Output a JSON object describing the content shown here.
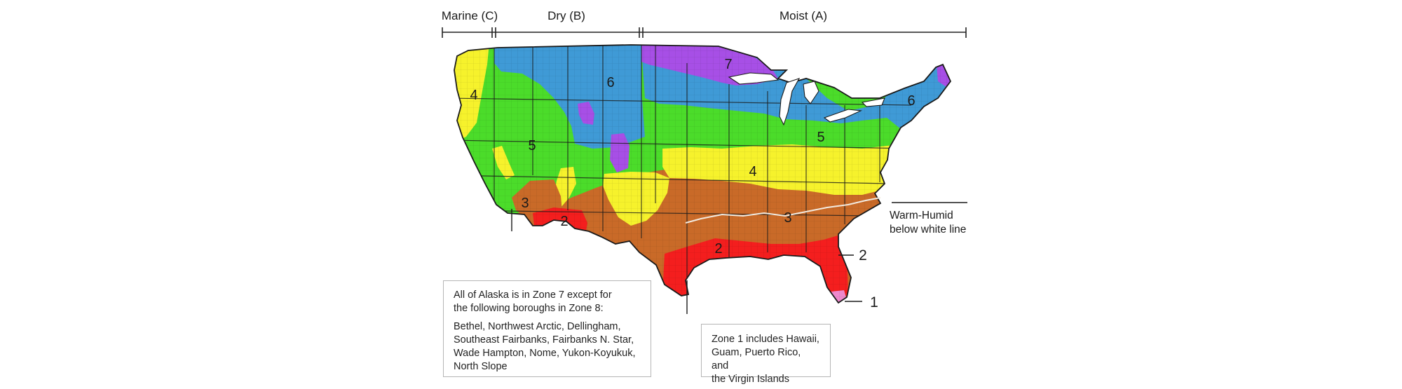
{
  "title": "",
  "header": {
    "marine": "Marine (C)",
    "dry": "Dry (B)",
    "moist": "Moist (A)"
  },
  "zones": {
    "z1": "1",
    "z2_west": "2",
    "z2_east": "2",
    "z2_florida_callout": "2",
    "z3_west": "3",
    "z3_east": "3",
    "z4_west": "4",
    "z4_east": "4",
    "z5_west": "5",
    "z5_east": "5",
    "z6_west": "6",
    "z6_east": "6",
    "z7": "7"
  },
  "colors": {
    "zone1": "#ee88cc",
    "zone2": "#f41e1e",
    "zone3": "#c96a28",
    "zone4": "#f6f22c",
    "zone5": "#4bdc2a",
    "zone6": "#3f9ad6",
    "zone7": "#a74fe6",
    "humid_line": "#f2eadf"
  },
  "annotations": {
    "warm_humid_line1": "Warm-Humid",
    "warm_humid_line2": "below white line"
  },
  "alaska_note": {
    "line1": "All of Alaska is in Zone 7 except for",
    "line2": "the following boroughs in Zone 8:",
    "line3": "Bethel, Northwest Arctic, Dellingham,",
    "line4": "Southeast Fairbanks, Fairbanks N. Star,",
    "line5": "Wade Hampton, Nome, Yukon-Koyukuk,",
    "line6": "North Slope"
  },
  "islands_note": {
    "line1": "Zone 1 includes Hawaii,",
    "line2": "Guam, Puerto Rico, and",
    "line3": "the Virgin Islands"
  }
}
